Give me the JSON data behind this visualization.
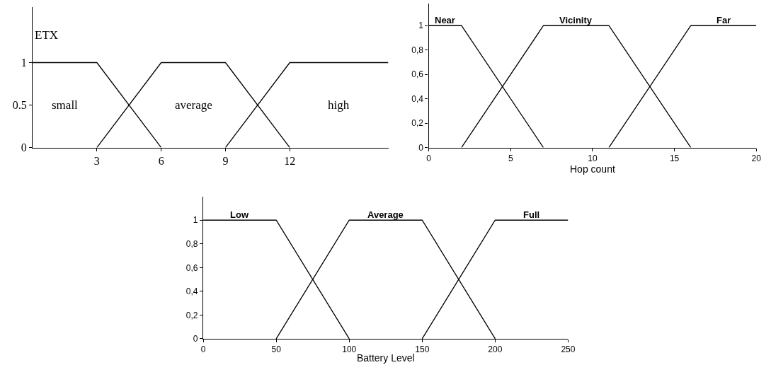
{
  "chart_data": [
    {
      "type": "line",
      "ylabel": "ETX",
      "xlim": [
        0,
        16.6
      ],
      "xticks": [
        3,
        6,
        9,
        12
      ],
      "ylim": [
        0,
        1.65
      ],
      "yticks": [
        0,
        0.5,
        1
      ],
      "series": [
        {
          "name": "small",
          "color": "#000000",
          "x": [
            0,
            3,
            6
          ],
          "values": [
            1,
            1,
            0
          ]
        },
        {
          "name": "average",
          "color": "#000000",
          "x": [
            3,
            6,
            9,
            12
          ],
          "values": [
            0,
            1,
            1,
            0
          ]
        },
        {
          "name": "high",
          "color": "#000000",
          "x": [
            9,
            12,
            16.6
          ],
          "values": [
            0,
            1,
            1
          ]
        }
      ]
    },
    {
      "type": "line",
      "xlabel": "Hop count",
      "xlim": [
        0,
        20
      ],
      "xticks": [
        0,
        5,
        10,
        15,
        20
      ],
      "ylim": [
        0,
        1.18
      ],
      "yticks": [
        0,
        {
          "value": 0.2,
          "label": "0,2"
        },
        {
          "value": 0.4,
          "label": "0,4"
        },
        {
          "value": 0.6,
          "label": "0,6"
        },
        {
          "value": 0.8,
          "label": "0,8"
        },
        1
      ],
      "series": [
        {
          "name": "Near",
          "color": "#000000",
          "x": [
            0,
            2,
            7
          ],
          "values": [
            1,
            1,
            0
          ]
        },
        {
          "name": "Vicinity",
          "color": "#000000",
          "x": [
            2,
            7,
            11,
            16
          ],
          "values": [
            0,
            1,
            1,
            0
          ]
        },
        {
          "name": "Far",
          "color": "#000000",
          "x": [
            11,
            16,
            20
          ],
          "values": [
            0,
            1,
            1
          ]
        }
      ]
    },
    {
      "type": "line",
      "xlabel": "Battery Level",
      "xlim": [
        0,
        250
      ],
      "xticks": [
        0,
        50,
        100,
        150,
        200,
        250
      ],
      "ylim": [
        0,
        1.2
      ],
      "yticks": [
        0,
        {
          "value": 0.2,
          "label": "0,2"
        },
        {
          "value": 0.4,
          "label": "0,4"
        },
        {
          "value": 0.6,
          "label": "0,6"
        },
        {
          "value": 0.8,
          "label": "0,8"
        },
        1
      ],
      "series": [
        {
          "name": "Low",
          "color": "#000000",
          "x": [
            0,
            50,
            100
          ],
          "values": [
            1,
            1,
            0
          ]
        },
        {
          "name": "Average",
          "color": "#000000",
          "x": [
            50,
            100,
            150,
            200
          ],
          "values": [
            0,
            1,
            1,
            0
          ]
        },
        {
          "name": "Full",
          "color": "#000000",
          "x": [
            150,
            200,
            250
          ],
          "values": [
            0,
            1,
            1
          ]
        }
      ]
    }
  ]
}
